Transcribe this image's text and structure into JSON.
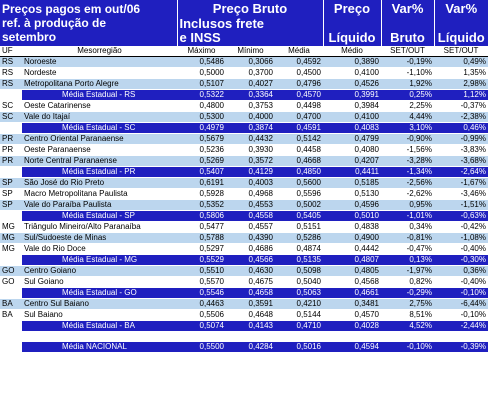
{
  "header": {
    "title_l1": "Preços pagos em out/06",
    "title_l2": "ref. à produção de",
    "title_l3": "setembro",
    "bruto_l1": "Preço Bruto",
    "bruto_l2": "Inclusos frete",
    "bruto_l3": "e INSS",
    "liquido_l1": "Preço",
    "liquido_l3": "Líquido",
    "varb_l1": "Var%",
    "varb_l3": "Bruto",
    "varl_l1": "Var%",
    "varl_l3": "Líquido"
  },
  "columns": {
    "uf": "UF",
    "meso": "Mesorregião",
    "max": "Máximo",
    "min": "Mínimo",
    "media": "Média",
    "medio": "Médio",
    "setout1": "SET/OUT",
    "setout2": "SET/OUT"
  },
  "rows": [
    {
      "uf": "RS",
      "name": "Noroeste",
      "max": "0,5486",
      "min": "0,3066",
      "avg": "0,4592",
      "liq": "0,3890",
      "vb": "-0,19%",
      "vl": "0,49%",
      "kind": "blue"
    },
    {
      "uf": "RS",
      "name": "Nordeste",
      "max": "0,5000",
      "min": "0,3700",
      "avg": "0,4500",
      "liq": "0,4100",
      "vb": "-1,10%",
      "vl": "1,35%",
      "kind": "white"
    },
    {
      "uf": "RS",
      "name": "Metropolitana Porto Alegre",
      "max": "0,5107",
      "min": "0,4027",
      "avg": "0,4796",
      "liq": "0,4526",
      "vb": "1,92%",
      "vl": "2,98%",
      "kind": "blue"
    },
    {
      "uf": "",
      "name": "Média Estadual - RS",
      "max": "0,5322",
      "min": "0,3364",
      "avg": "0,4570",
      "liq": "0,3991",
      "vb": "0,25%",
      "vl": "1,12%",
      "kind": "state"
    },
    {
      "uf": "SC",
      "name": "Oeste Catarinense",
      "max": "0,4800",
      "min": "0,3753",
      "avg": "0,4498",
      "liq": "0,3984",
      "vb": "2,25%",
      "vl": "-0,37%",
      "kind": "white"
    },
    {
      "uf": "SC",
      "name": "Vale do Itajaí",
      "max": "0,5300",
      "min": "0,4000",
      "avg": "0,4700",
      "liq": "0,4100",
      "vb": "4,44%",
      "vl": "-2,38%",
      "kind": "blue"
    },
    {
      "uf": "",
      "name": "Média Estadual - SC",
      "max": "0,4979",
      "min": "0,3874",
      "avg": "0,4591",
      "liq": "0,4083",
      "vb": "3,10%",
      "vl": "0,46%",
      "kind": "state"
    },
    {
      "uf": "PR",
      "name": "Centro Oriental Paranaense",
      "max": "0,5679",
      "min": "0,4432",
      "avg": "0,5142",
      "liq": "0,4799",
      "vb": "-0,90%",
      "vl": "-0,99%",
      "kind": "blue"
    },
    {
      "uf": "PR",
      "name": "Oeste Paranaense",
      "max": "0,5236",
      "min": "0,3930",
      "avg": "0,4458",
      "liq": "0,4080",
      "vb": "-1,56%",
      "vl": "-3,83%",
      "kind": "white"
    },
    {
      "uf": "PR",
      "name": "Norte Central Paranaense",
      "max": "0,5269",
      "min": "0,3572",
      "avg": "0,4668",
      "liq": "0,4207",
      "vb": "-3,28%",
      "vl": "-3,68%",
      "kind": "blue"
    },
    {
      "uf": "",
      "name": "Média Estadual - PR",
      "max": "0,5407",
      "min": "0,4129",
      "avg": "0,4850",
      "liq": "0,4411",
      "vb": "-1,34%",
      "vl": "-2,64%",
      "kind": "state"
    },
    {
      "uf": "SP",
      "name": "São José do Rio Preto",
      "max": "0,6191",
      "min": "0,4003",
      "avg": "0,5600",
      "liq": "0,5185",
      "vb": "-2,56%",
      "vl": "-1,67%",
      "kind": "blue"
    },
    {
      "uf": "SP",
      "name": "Macro Metropolitana Paulista",
      "max": "0,5928",
      "min": "0,4968",
      "avg": "0,5596",
      "liq": "0,5130",
      "vb": "-2,62%",
      "vl": "-3,46%",
      "kind": "white"
    },
    {
      "uf": "SP",
      "name": "Vale do Paraíba Paulista",
      "max": "0,5352",
      "min": "0,4553",
      "avg": "0,5002",
      "liq": "0,4596",
      "vb": "0,95%",
      "vl": "-1,51%",
      "kind": "blue"
    },
    {
      "uf": "",
      "name": "Média Estadual - SP",
      "max": "0,5806",
      "min": "0,4558",
      "avg": "0,5405",
      "liq": "0,5010",
      "vb": "-1,01%",
      "vl": "-0,63%",
      "kind": "state"
    },
    {
      "uf": "MG",
      "name": "Triângulo Mineiro/Alto Paranaíba",
      "max": "0,5477",
      "min": "0,4557",
      "avg": "0,5151",
      "liq": "0,4838",
      "vb": "0,34%",
      "vl": "-0,42%",
      "kind": "white"
    },
    {
      "uf": "MG",
      "name": "Sul/Sudoeste de Minas",
      "max": "0,5788",
      "min": "0,4390",
      "avg": "0,5286",
      "liq": "0,4900",
      "vb": "-0,81%",
      "vl": "-1,08%",
      "kind": "blue"
    },
    {
      "uf": "MG",
      "name": "Vale do Rio Doce",
      "max": "0,5297",
      "min": "0,4686",
      "avg": "0,4874",
      "liq": "0,4442",
      "vb": "-0,47%",
      "vl": "-0,40%",
      "kind": "white"
    },
    {
      "uf": "",
      "name": "Média Estadual - MG",
      "max": "0,5529",
      "min": "0,4566",
      "avg": "0,5135",
      "liq": "0,4807",
      "vb": "0,13%",
      "vl": "-0,30%",
      "kind": "state"
    },
    {
      "uf": "GO",
      "name": "Centro Goiano",
      "max": "0,5510",
      "min": "0,4630",
      "avg": "0,5098",
      "liq": "0,4805",
      "vb": "-1,97%",
      "vl": "0,36%",
      "kind": "blue"
    },
    {
      "uf": "GO",
      "name": "Sul Goiano",
      "max": "0,5570",
      "min": "0,4675",
      "avg": "0,5040",
      "liq": "0,4568",
      "vb": "0,82%",
      "vl": "-0,40%",
      "kind": "white"
    },
    {
      "uf": "",
      "name": "Média Estadual - GO",
      "max": "0,5546",
      "min": "0,4658",
      "avg": "0,5063",
      "liq": "0,4661",
      "vb": "-0,29%",
      "vl": "-0,10%",
      "kind": "state"
    },
    {
      "uf": "BA",
      "name": "Centro Sul Baiano",
      "max": "0,4463",
      "min": "0,3591",
      "avg": "0,4210",
      "liq": "0,3481",
      "vb": "2,75%",
      "vl": "-6,44%",
      "kind": "blue"
    },
    {
      "uf": "BA",
      "name": "Sul Baiano",
      "max": "0,5506",
      "min": "0,4648",
      "avg": "0,5144",
      "liq": "0,4570",
      "vb": "8,51%",
      "vl": "-0,10%",
      "kind": "white"
    },
    {
      "uf": "",
      "name": "Média Estadual - BA",
      "max": "0,5074",
      "min": "0,4143",
      "avg": "0,4710",
      "liq": "0,4028",
      "vb": "4,52%",
      "vl": "-2,44%",
      "kind": "state"
    }
  ],
  "national": {
    "name": "Média NACIONAL",
    "max": "0,5500",
    "min": "0,4284",
    "avg": "0,5016",
    "liq": "0,4594",
    "vb": "-0,10%",
    "vl": "-0,39%"
  }
}
